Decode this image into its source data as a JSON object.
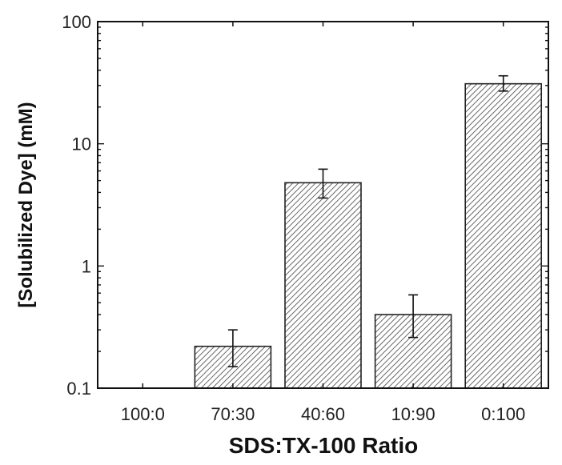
{
  "chart_data": {
    "type": "bar",
    "title": "",
    "xlabel": "SDS:TX-100 Ratio",
    "ylabel": "[Solubilized Dye] (mM)",
    "yscale": "log",
    "ylim": [
      0.1,
      100
    ],
    "yticks": [
      0.1,
      1,
      10,
      100
    ],
    "ytick_labels": [
      "0.1",
      "1",
      "10",
      "100"
    ],
    "categories": [
      "100:0",
      "70:30",
      "40:60",
      "10:90",
      "0:100"
    ],
    "values": [
      null,
      0.22,
      4.8,
      0.4,
      31
    ],
    "error_low": [
      null,
      0.15,
      3.6,
      0.26,
      27
    ],
    "error_high": [
      null,
      0.3,
      6.2,
      0.58,
      36
    ],
    "bar_pattern": "diagonal-hatch",
    "grid": false,
    "legend": "none",
    "colors": {
      "bar_fill": "#ffffff",
      "hatch": "#333333",
      "axis": "#111111"
    }
  }
}
